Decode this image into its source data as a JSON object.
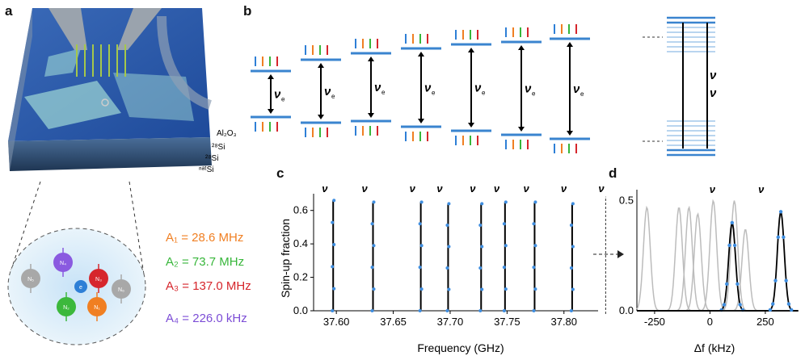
{
  "panels": {
    "a": "a",
    "b": "b",
    "c": "c",
    "d": "d"
  },
  "device_layers": {
    "al2o3": "Al₂O₃",
    "si28_top": "²⁸Si",
    "si28": "²⁸Si",
    "natsi": "ⁿᵃᵗSi"
  },
  "hyperfine": [
    {
      "label": "A₁ = 28.6 MHz",
      "color": "#f07f22"
    },
    {
      "label": "A₂ = 73.7 MHz",
      "color": "#37b63a"
    },
    {
      "label": "A₃ = 137.0 MHz",
      "color": "#d9232a"
    },
    {
      "label": "A₄ = 226.0 kHz",
      "color": "#7c4dd6"
    }
  ],
  "nuclei": [
    {
      "label": "N₄",
      "color": "#8a5ae0"
    },
    {
      "label": "N₂",
      "color": "#3cb83c"
    },
    {
      "label": "N₃",
      "color": "#d6262c"
    },
    {
      "label": "N₁",
      "color": "#f07f22"
    },
    {
      "label": "N₅",
      "color": "#a8a8a8"
    },
    {
      "label": "N₆",
      "color": "#a8a8a8"
    },
    {
      "label": "e",
      "color": "#2e7fd6"
    }
  ],
  "energy_levels": {
    "nu_e": "ν",
    "e_sub": "e",
    "dots": "⋯"
  },
  "chart_data": [
    {
      "panel": "c",
      "type": "line",
      "xlabel": "Frequency (GHz)",
      "ylabel": "Spin-up fraction",
      "xlim": [
        37.58,
        37.83
      ],
      "ylim": [
        0,
        0.7
      ],
      "x_ticks": [
        "37.60",
        "37.65",
        "37.70",
        "37.75",
        "37.80"
      ],
      "y_ticks": [
        "0.0",
        "0.2",
        "0.4",
        "0.6"
      ],
      "peaks_ghz": [
        37.583,
        37.618,
        37.66,
        37.684,
        37.713,
        37.734,
        37.76,
        37.793,
        37.826
      ],
      "peak_heights": [
        0.66,
        0.65,
        0.65,
        0.64,
        0.64,
        0.65,
        0.65,
        0.64,
        0.63
      ]
    },
    {
      "panel": "d",
      "type": "line",
      "xlabel": "Δf (kHz)",
      "xlim": [
        -330,
        400
      ],
      "ylim": [
        0,
        0.55
      ],
      "x_ticks": [
        "-250",
        "0",
        "250"
      ],
      "y_ticks": [
        "0.0",
        "0.5"
      ],
      "gray_peaks_khz": [
        -285,
        -140,
        -95,
        -55,
        15,
        110,
        160
      ],
      "gray_peak_heights": [
        0.47,
        0.47,
        0.47,
        0.44,
        0.5,
        0.5,
        0.37
      ],
      "black_peaks_khz": [
        100,
        320
      ],
      "black_peak_heights": [
        0.4,
        0.45
      ]
    }
  ]
}
